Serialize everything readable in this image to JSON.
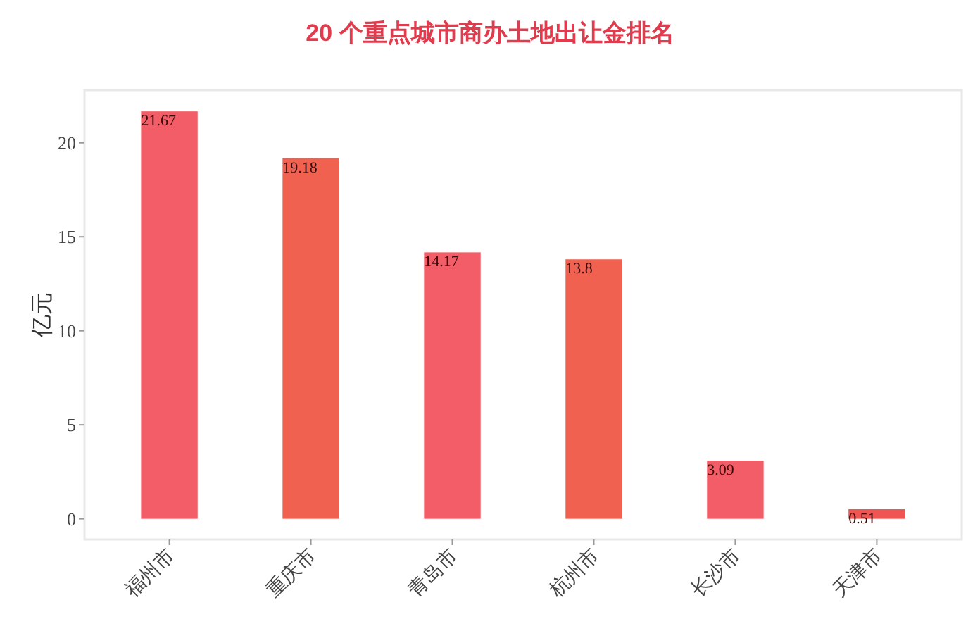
{
  "chart_data": {
    "type": "bar",
    "title": "20 个重点城市商办土地出让金排名",
    "ylabel": "亿元",
    "categories": [
      "福州市",
      "重庆市",
      "青岛市",
      "杭州市",
      "长沙市",
      "天津市"
    ],
    "values": [
      21.67,
      19.18,
      14.17,
      13.8,
      3.09,
      0.51
    ],
    "colors": [
      "#f25d67",
      "#f0614f",
      "#f25d67",
      "#f0614f",
      "#f25d67",
      "#ef5552"
    ],
    "ylim": [
      -1.1,
      22.8
    ],
    "yticks": [
      0,
      5,
      10,
      15,
      20
    ],
    "data_labels": true
  }
}
